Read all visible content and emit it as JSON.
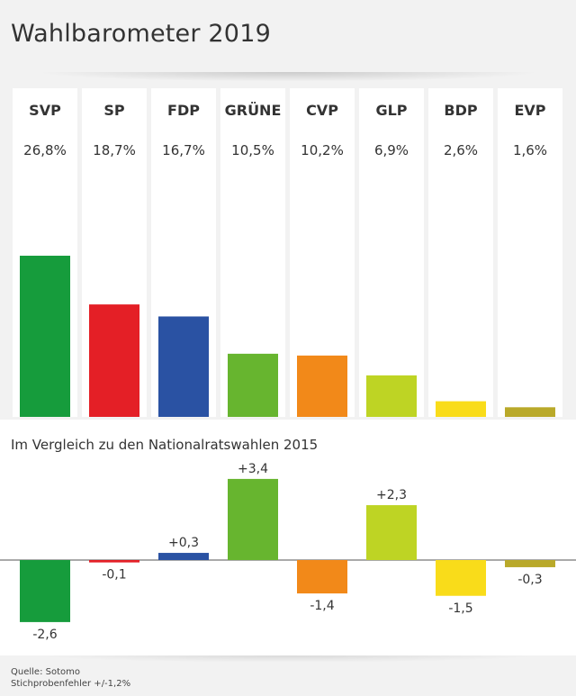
{
  "title": "Wahlbarometer 2019",
  "compare_title": "Im Vergleich zu den Nationalratswahlen 2015",
  "source_line1": "Quelle: Sotomo",
  "source_line2": "Stichprobenfehler +/-1,2%",
  "chart_data": [
    {
      "type": "bar",
      "categories": [
        "SVP",
        "SP",
        "FDP",
        "GRÜNE",
        "CVP",
        "GLP",
        "BDP",
        "EVP"
      ],
      "values": [
        26.8,
        18.7,
        16.7,
        10.5,
        10.2,
        6.9,
        2.6,
        1.6
      ],
      "value_labels": [
        "26,8%",
        "18,7%",
        "16,7%",
        "10,5%",
        "10,2%",
        "6,9%",
        "2,6%",
        "1,6%"
      ],
      "colors": [
        "#169c3c",
        "#e41f26",
        "#2a52a3",
        "#67b52f",
        "#f28919",
        "#bed424",
        "#f9dc1a",
        "#b9a92a"
      ],
      "ylim": [
        0,
        28
      ]
    },
    {
      "type": "bar",
      "title": "Im Vergleich zu den Nationalratswahlen 2015",
      "categories": [
        "SVP",
        "SP",
        "FDP",
        "GRÜNE",
        "CVP",
        "GLP",
        "BDP",
        "EVP"
      ],
      "values": [
        -2.6,
        -0.1,
        0.3,
        3.4,
        -1.4,
        2.3,
        -1.5,
        -0.3
      ],
      "value_labels": [
        "-2,6",
        "-0,1",
        "+0,3",
        "+3,4",
        "-1,4",
        "+2,3",
        "-1,5",
        "-0,3"
      ],
      "colors": [
        "#169c3c",
        "#e41f26",
        "#2a52a3",
        "#67b52f",
        "#f28919",
        "#bed424",
        "#f9dc1a",
        "#b9a92a"
      ],
      "ylim": [
        -3,
        4
      ]
    }
  ]
}
